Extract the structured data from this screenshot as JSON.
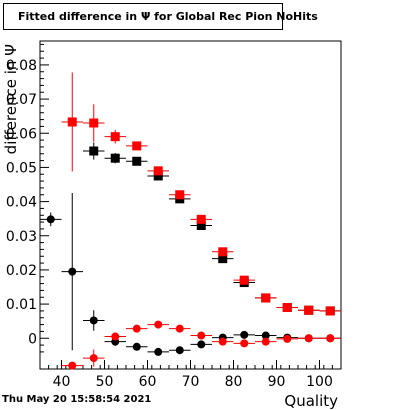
{
  "chart_data": {
    "type": "scatter",
    "title": "Fitted difference in  Ψ  for Global Rec Pion NoHits",
    "xlabel": "Quality",
    "ylabel": "difference in Ψ",
    "xlim": [
      35,
      105
    ],
    "ylim": [
      -0.009,
      0.087
    ],
    "x_ticks": [
      40,
      50,
      60,
      70,
      80,
      90,
      100
    ],
    "y_ticks": [
      0,
      0.01,
      0.02,
      0.03,
      0.04,
      0.05,
      0.06,
      0.07,
      0.08
    ],
    "y_tick_labels": [
      "0",
      "0.01",
      "0.02",
      "0.03",
      "0.04",
      "0.05",
      "0.06",
      "0.07",
      "0.08"
    ],
    "x_tick_labels": [
      "40",
      "50",
      "60",
      "70",
      "80",
      "90",
      "100"
    ],
    "timestamp": "Thu May 20 15:58:54 2021",
    "series": [
      {
        "name": "",
        "color": "#000000",
        "marker": "square",
        "x": [
          47.5,
          52.5,
          57.5,
          62.5,
          67.5,
          72.5,
          77.5,
          82.5,
          87.5,
          92.5,
          97.5,
          102.5
        ],
        "y": [
          0.0548,
          0.0527,
          0.0518,
          0.0475,
          0.0408,
          0.033,
          0.0233,
          0.0163,
          0.0118,
          0.009,
          0.0082,
          0.008
        ],
        "yerr": [
          0.0025,
          0.0015,
          0.001,
          0.0008,
          0.0006,
          0.0005,
          0.0004,
          0.0003,
          0.0003,
          0.0002,
          0.0002,
          0.0002
        ]
      },
      {
        "name": "",
        "color": "#ff0000",
        "marker": "square",
        "x": [
          42.5,
          47.5,
          52.5,
          57.5,
          62.5,
          67.5,
          72.5,
          77.5,
          82.5,
          87.5,
          92.5,
          97.5,
          102.5
        ],
        "y": [
          0.0633,
          0.063,
          0.059,
          0.0563,
          0.049,
          0.042,
          0.0348,
          0.0253,
          0.017,
          0.0118,
          0.009,
          0.0082,
          0.008
        ],
        "yerr": [
          0.0145,
          0.0055,
          0.002,
          0.0012,
          0.001,
          0.0008,
          0.0006,
          0.0005,
          0.0004,
          0.0003,
          0.0002,
          0.0002,
          0.0002
        ]
      },
      {
        "name": "",
        "color": "#000000",
        "marker": "circle",
        "x": [
          37.5,
          42.5,
          47.5,
          52.5,
          57.5,
          62.5,
          67.5,
          72.5,
          77.5,
          82.5,
          87.5,
          92.5,
          97.5,
          102.5
        ],
        "y": [
          0.0348,
          0.0195,
          0.0052,
          -0.001,
          -0.0025,
          -0.004,
          -0.0035,
          -0.0018,
          0.0002,
          0.001,
          0.0008,
          0.0002,
          0.0,
          0.0
        ],
        "yerr": [
          0.002,
          0.023,
          0.003,
          0.0012,
          0.0008,
          0.0006,
          0.0005,
          0.0004,
          0.0003,
          0.0003,
          0.0002,
          0.0002,
          0.0002,
          0.0002
        ]
      },
      {
        "name": "",
        "color": "#ff0000",
        "marker": "circle",
        "x": [
          42.5,
          47.5,
          52.5,
          57.5,
          62.5,
          67.5,
          72.5,
          77.5,
          82.5,
          87.5,
          92.5,
          97.5,
          102.5
        ],
        "y": [
          -0.008,
          -0.0058,
          0.0005,
          0.0028,
          0.004,
          0.0028,
          0.0008,
          -0.001,
          -0.0015,
          -0.001,
          -0.0002,
          0.0,
          0.0
        ],
        "yerr": [
          0.001,
          0.0025,
          0.001,
          0.0007,
          0.0005,
          0.0004,
          0.0004,
          0.0003,
          0.0003,
          0.0002,
          0.0002,
          0.0002,
          0.0002
        ]
      }
    ]
  }
}
